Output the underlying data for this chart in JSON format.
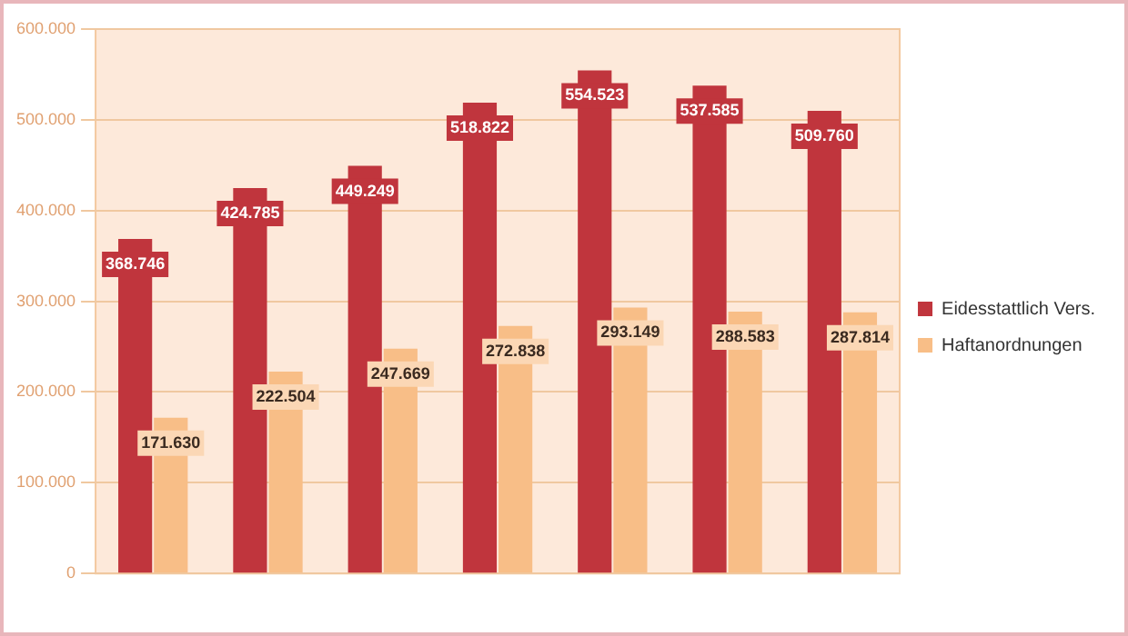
{
  "chart_data": {
    "type": "bar",
    "categories": [
      null,
      null,
      null,
      null,
      null,
      null,
      null
    ],
    "series": [
      {
        "name": "Eidesstattlich Vers.",
        "color": "#c0353d",
        "values": [
          368746,
          424785,
          449249,
          518822,
          554523,
          537585,
          509760
        ],
        "value_labels": [
          "368.746",
          "424.785",
          "449.249",
          "518.822",
          "554.523",
          "537.585",
          "509.760"
        ]
      },
      {
        "name": "Haftanordnungen",
        "color": "#f8be87",
        "values": [
          171630,
          222504,
          247669,
          272838,
          293149,
          288583,
          287814
        ],
        "value_labels": [
          "171.630",
          "222.504",
          "247.669",
          "272.838",
          "293.149",
          "288.583",
          "287.814"
        ]
      }
    ],
    "ylim": [
      0,
      600000
    ],
    "yticks": [
      {
        "value": 0,
        "label": "0"
      },
      {
        "value": 100000,
        "label": "100.000"
      },
      {
        "value": 200000,
        "label": "200.000"
      },
      {
        "value": 300000,
        "label": "300.000"
      },
      {
        "value": 400000,
        "label": "400.000"
      },
      {
        "value": 500000,
        "label": "500.000"
      },
      {
        "value": 600000,
        "label": "600.000"
      }
    ],
    "grid": "y",
    "legend": "right"
  }
}
